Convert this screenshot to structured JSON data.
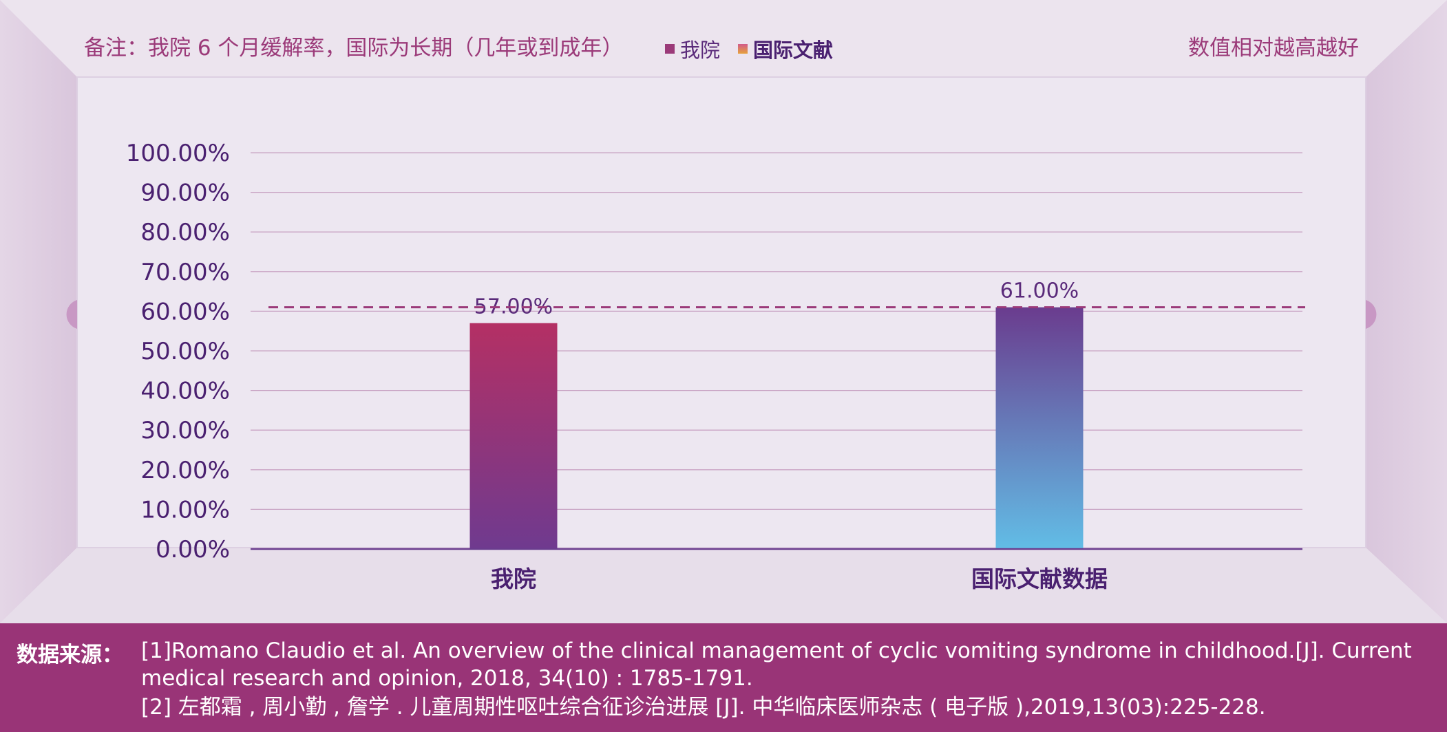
{
  "header": {
    "note": "备注：我院 6 个月缓解率，国际为长期（几年或到成年）",
    "legend": [
      {
        "name": "我院",
        "color": "#9b3a79"
      },
      {
        "name": "国际文献",
        "color": "#e08a4a"
      }
    ],
    "hint": "数值相对越高越好"
  },
  "chart_data": {
    "type": "bar",
    "categories": [
      "我院",
      "国际文献数据"
    ],
    "values": [
      57.0,
      61.0
    ],
    "data_labels": [
      "57.00%",
      "61.00%"
    ],
    "ylim": [
      0,
      100
    ],
    "yticks": [
      "0.00%",
      "10.00%",
      "20.00%",
      "30.00%",
      "40.00%",
      "50.00%",
      "60.00%",
      "70.00%",
      "80.00%",
      "90.00%",
      "100.00%"
    ],
    "reference_line": 61.0,
    "grid": true,
    "bar_gradients": [
      {
        "top": "#b43064",
        "bottom": "#6f3a8f"
      },
      {
        "top": "#6a3c8e",
        "bottom": "#62bde6"
      }
    ],
    "colors": {
      "axis": "#6a3c8e",
      "grid": "#c9a4c4",
      "tick_label": "#4a2070",
      "reference": "#9b3a79"
    }
  },
  "footer": {
    "label": "数据来源：",
    "refs": [
      "[1]Romano Claudio et al. An overview of the clinical management of cyclic vomiting syndrome in childhood.[J]. Current",
      "medical research and opinion, 2018, 34(10) : 1785-1791.",
      "[2] 左都霜 , 周小勤 , 詹学 . 儿童周期性呕吐综合征诊治进展 [J]. 中华临床医师杂志 ( 电子版 ),2019,13(03):225-228."
    ],
    "bg_color": "#993477"
  }
}
